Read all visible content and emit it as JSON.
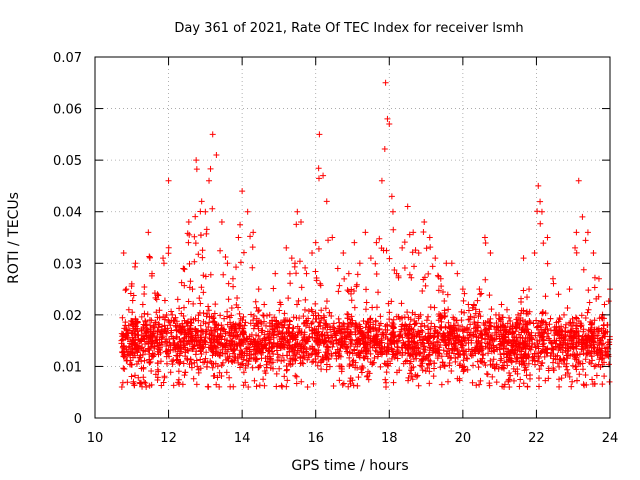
{
  "chart_data": {
    "type": "scatter",
    "title": "Day 361 of 2021, Rate Of TEC Index for receiver lsmh",
    "xlabel": "GPS time / hours",
    "ylabel": "ROTI / TECUs",
    "xlim": [
      10,
      24
    ],
    "ylim": [
      0,
      0.07
    ],
    "x_ticks": [
      10,
      12,
      14,
      16,
      18,
      20,
      22,
      24
    ],
    "x_tick_labels": [
      "10",
      "12",
      "14",
      "16",
      "18",
      "20",
      "22",
      "24"
    ],
    "y_ticks": [
      0,
      0.01,
      0.02,
      0.03,
      0.04,
      0.05,
      0.06,
      0.07
    ],
    "y_tick_labels": [
      "0",
      "0.01",
      "0.02",
      "0.03",
      "0.04",
      "0.05",
      "0.06",
      "0.07"
    ],
    "grid": true,
    "marker": "+",
    "color": "#ff0000",
    "series": [
      {
        "name": "ROTI",
        "x": [
          10.72,
          10.78,
          10.85,
          10.92,
          11.0,
          11.1,
          11.2,
          11.3,
          11.45,
          11.55,
          11.7,
          11.85,
          12.0,
          12.1,
          12.25,
          12.4,
          12.55,
          12.65,
          12.75,
          12.9,
          13.0,
          13.1,
          13.2,
          13.3,
          13.45,
          13.6,
          13.75,
          13.9,
          14.0,
          14.15,
          14.3,
          14.45,
          14.6,
          14.75,
          14.9,
          15.05,
          15.2,
          15.35,
          15.5,
          15.6,
          15.75,
          15.9,
          16.0,
          16.1,
          16.2,
          16.3,
          16.45,
          16.6,
          16.75,
          16.9,
          17.05,
          17.2,
          17.35,
          17.5,
          17.65,
          17.8,
          17.9,
          17.95,
          18.0,
          18.1,
          18.2,
          18.35,
          18.5,
          18.65,
          18.8,
          18.95,
          19.1,
          19.25,
          19.4,
          19.55,
          19.7,
          19.85,
          20.0,
          20.15,
          20.3,
          20.45,
          20.6,
          20.75,
          20.9,
          21.05,
          21.2,
          21.35,
          21.5,
          21.65,
          21.8,
          21.95,
          22.05,
          22.15,
          22.3,
          22.45,
          22.6,
          22.75,
          22.9,
          23.05,
          23.15,
          23.25,
          23.4,
          23.55,
          23.7,
          23.85,
          24.0
        ],
        "y": [
          0.015,
          0.032,
          0.025,
          0.021,
          0.026,
          0.03,
          0.014,
          0.022,
          0.036,
          0.028,
          0.024,
          0.031,
          0.046,
          0.02,
          0.023,
          0.029,
          0.038,
          0.025,
          0.05,
          0.042,
          0.04,
          0.046,
          0.055,
          0.051,
          0.038,
          0.03,
          0.027,
          0.035,
          0.044,
          0.04,
          0.036,
          0.025,
          0.022,
          0.02,
          0.028,
          0.022,
          0.033,
          0.031,
          0.04,
          0.038,
          0.028,
          0.032,
          0.034,
          0.055,
          0.047,
          0.042,
          0.035,
          0.029,
          0.032,
          0.028,
          0.034,
          0.03,
          0.036,
          0.031,
          0.034,
          0.046,
          0.065,
          0.058,
          0.057,
          0.04,
          0.028,
          0.033,
          0.041,
          0.036,
          0.032,
          0.038,
          0.035,
          0.031,
          0.027,
          0.03,
          0.03,
          0.028,
          0.025,
          0.022,
          0.022,
          0.025,
          0.035,
          0.032,
          0.02,
          0.022,
          0.021,
          0.018,
          0.02,
          0.031,
          0.025,
          0.032,
          0.045,
          0.04,
          0.035,
          0.027,
          0.024,
          0.02,
          0.025,
          0.033,
          0.046,
          0.039,
          0.036,
          0.032,
          0.027,
          0.022,
          0.025
        ],
        "baseline": 0.006
      }
    ]
  }
}
